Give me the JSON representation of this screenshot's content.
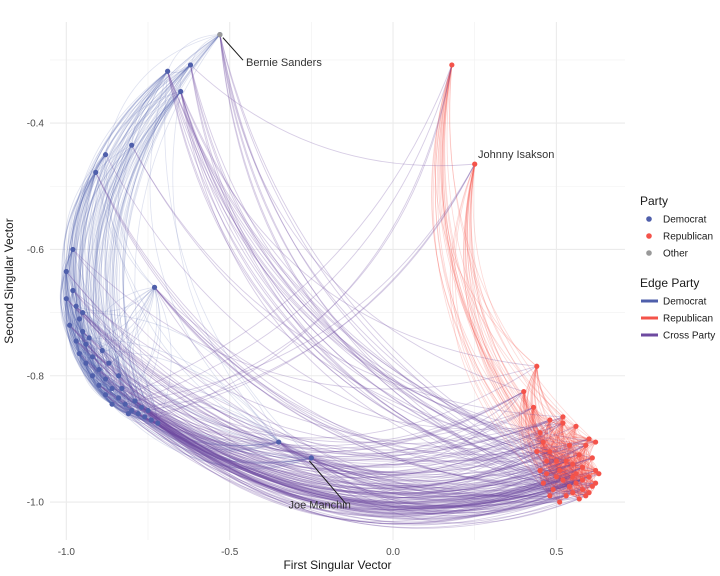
{
  "chart_data": {
    "type": "scatter",
    "title": "",
    "xlabel": "First Singular Vector",
    "ylabel": "Second Singular Vector",
    "xlim": [
      -1.05,
      0.71
    ],
    "ylim": [
      -1.06,
      -0.24
    ],
    "x_ticks": [
      {
        "value": -1.0,
        "label": "-1.0"
      },
      {
        "value": -0.5,
        "label": "-0.5"
      },
      {
        "value": 0.0,
        "label": "0.0"
      },
      {
        "value": 0.5,
        "label": "0.5"
      }
    ],
    "y_ticks": [
      {
        "value": -0.4,
        "label": "-0.4"
      },
      {
        "value": -0.6,
        "label": "-0.6"
      },
      {
        "value": -0.8,
        "label": "-0.8"
      },
      {
        "value": -1.0,
        "label": "-1.0"
      }
    ],
    "grid": true,
    "colors": {
      "democrat": "#4f5fab",
      "republican": "#f4534a",
      "other": "#999999",
      "cross": "#6e4aa0"
    },
    "legends": [
      {
        "title": "Party",
        "kind": "point",
        "entries": [
          {
            "label": "Democrat",
            "color": "#4f5fab"
          },
          {
            "label": "Republican",
            "color": "#f4534a"
          },
          {
            "label": "Other",
            "color": "#999999"
          }
        ]
      },
      {
        "title": "Edge Party",
        "kind": "line",
        "entries": [
          {
            "label": "Democrat",
            "color": "#4f5fab"
          },
          {
            "label": "Republican",
            "color": "#f4534a"
          },
          {
            "label": "Cross Party",
            "color": "#6e4aa0"
          }
        ]
      }
    ],
    "annotations": [
      {
        "label": "Bernie Sanders",
        "point": [
          -0.53,
          -0.26
        ],
        "text_at": [
          -0.45,
          -0.31
        ]
      },
      {
        "label": "Johnny Isakson",
        "point": [
          0.25,
          -0.465
        ],
        "text_at": [
          0.26,
          -0.455
        ]
      },
      {
        "label": "Joe Manchin",
        "point": [
          -0.25,
          -0.93
        ],
        "text_at": [
          -0.32,
          -1.01
        ]
      }
    ],
    "series": [
      {
        "name": "Democrat",
        "color": "#4f5fab",
        "points": [
          [
            -0.53,
            -0.26
          ],
          [
            -0.69,
            -0.318
          ],
          [
            -0.62,
            -0.308
          ],
          [
            -0.65,
            -0.35
          ],
          [
            -0.8,
            -0.435
          ],
          [
            -0.88,
            -0.45
          ],
          [
            -0.91,
            -0.478
          ],
          [
            -0.98,
            -0.6
          ],
          [
            -1.0,
            -0.635
          ],
          [
            -0.98,
            -0.665
          ],
          [
            -1.0,
            -0.678
          ],
          [
            -0.97,
            -0.69
          ],
          [
            -0.96,
            -0.71
          ],
          [
            -0.99,
            -0.72
          ],
          [
            -0.95,
            -0.73
          ],
          [
            -0.97,
            -0.745
          ],
          [
            -0.94,
            -0.75
          ],
          [
            -0.96,
            -0.765
          ],
          [
            -0.92,
            -0.77
          ],
          [
            -0.94,
            -0.78
          ],
          [
            -0.9,
            -0.79
          ],
          [
            -0.92,
            -0.8
          ],
          [
            -0.88,
            -0.805
          ],
          [
            -0.9,
            -0.815
          ],
          [
            -0.86,
            -0.82
          ],
          [
            -0.88,
            -0.83
          ],
          [
            -0.84,
            -0.835
          ],
          [
            -0.86,
            -0.845
          ],
          [
            -0.82,
            -0.845
          ],
          [
            -0.8,
            -0.855
          ],
          [
            -0.78,
            -0.86
          ],
          [
            -0.76,
            -0.865
          ],
          [
            -0.74,
            -0.87
          ],
          [
            -0.72,
            -0.875
          ],
          [
            -0.73,
            -0.66
          ],
          [
            -0.35,
            -0.905
          ],
          [
            -0.84,
            -0.8
          ],
          [
            -0.87,
            -0.78
          ],
          [
            -0.89,
            -0.76
          ],
          [
            -0.93,
            -0.74
          ],
          [
            -0.95,
            -0.7
          ],
          [
            -0.83,
            -0.82
          ],
          [
            -0.79,
            -0.84
          ],
          [
            -0.77,
            -0.85
          ],
          [
            -0.81,
            -0.86
          ],
          [
            -0.75,
            -0.855
          ],
          [
            -0.25,
            -0.93
          ]
        ]
      },
      {
        "name": "Republican",
        "color": "#f4534a",
        "points": [
          [
            0.18,
            -0.308
          ],
          [
            0.25,
            -0.465
          ],
          [
            0.44,
            -0.785
          ],
          [
            0.4,
            -0.825
          ],
          [
            0.43,
            -0.85
          ],
          [
            0.45,
            -0.89
          ],
          [
            0.48,
            -0.87
          ],
          [
            0.52,
            -0.865
          ],
          [
            0.52,
            -0.875
          ],
          [
            0.56,
            -0.88
          ],
          [
            0.6,
            -0.9
          ],
          [
            0.62,
            -0.905
          ],
          [
            0.46,
            -0.905
          ],
          [
            0.48,
            -0.92
          ],
          [
            0.5,
            -0.935
          ],
          [
            0.53,
            -0.935
          ],
          [
            0.55,
            -0.94
          ],
          [
            0.58,
            -0.945
          ],
          [
            0.61,
            -0.93
          ],
          [
            0.62,
            -0.95
          ],
          [
            0.63,
            -0.955
          ],
          [
            0.6,
            -0.96
          ],
          [
            0.58,
            -0.965
          ],
          [
            0.56,
            -0.97
          ],
          [
            0.54,
            -0.975
          ],
          [
            0.52,
            -0.965
          ],
          [
            0.5,
            -0.96
          ],
          [
            0.47,
            -0.955
          ],
          [
            0.45,
            -0.95
          ],
          [
            0.55,
            -0.985
          ],
          [
            0.57,
            -0.995
          ],
          [
            0.59,
            -0.99
          ],
          [
            0.61,
            -0.975
          ],
          [
            0.53,
            -0.99
          ],
          [
            0.49,
            -0.98
          ],
          [
            0.51,
            -0.95
          ],
          [
            0.57,
            -0.925
          ],
          [
            0.59,
            -0.91
          ],
          [
            0.54,
            -0.91
          ],
          [
            0.6,
            -0.985
          ],
          [
            0.47,
            -0.935
          ],
          [
            0.44,
            -0.92
          ],
          [
            0.56,
            -0.955
          ],
          [
            0.62,
            -0.97
          ],
          [
            0.46,
            -0.97
          ],
          [
            0.48,
            -0.99
          ],
          [
            0.51,
            -1.0
          ],
          [
            0.55,
            -0.96
          ],
          [
            0.58,
            -0.98
          ]
        ]
      },
      {
        "name": "Other",
        "color": "#999999",
        "points": [
          [
            -0.53,
            -0.26
          ]
        ]
      }
    ]
  }
}
